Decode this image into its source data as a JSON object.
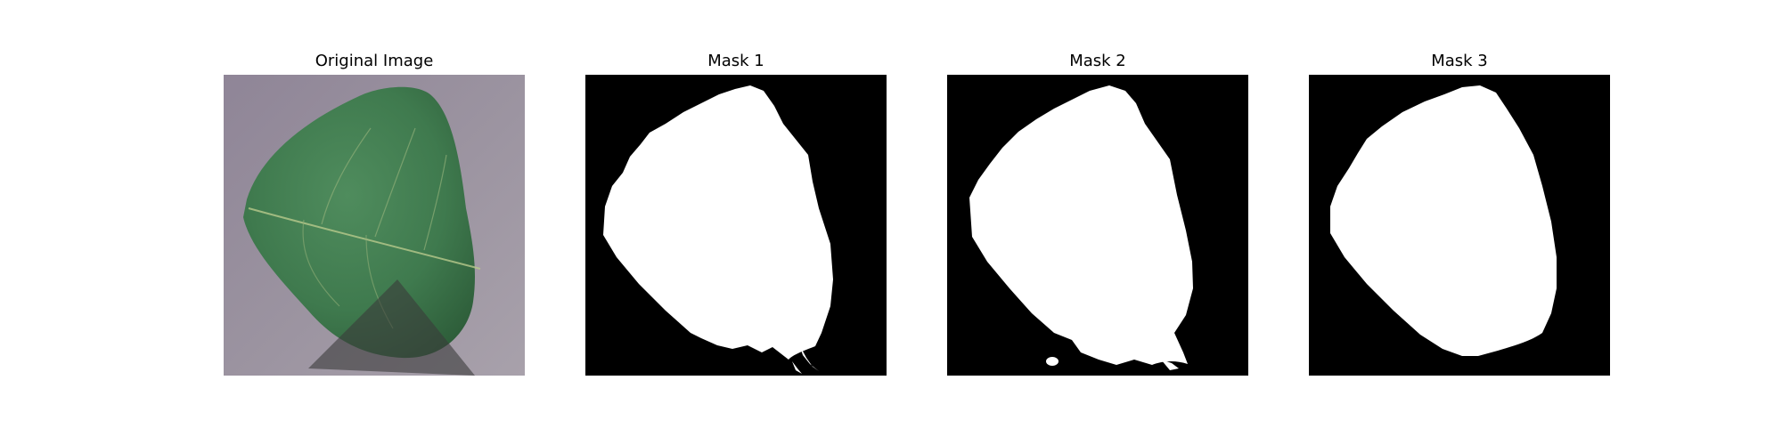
{
  "figure": {
    "panels": [
      {
        "title": "Original Image"
      },
      {
        "title": "Mask 1"
      },
      {
        "title": "Mask 2"
      },
      {
        "title": "Mask 3"
      }
    ]
  },
  "colors": {
    "background_paper": "#968d9b",
    "leaf": "#3f7a4e",
    "leaf_shadow": "#2d5236",
    "overlay_triangle": "#3b3b3b",
    "mask_foreground": "#ffffff",
    "mask_background": "#000000"
  }
}
